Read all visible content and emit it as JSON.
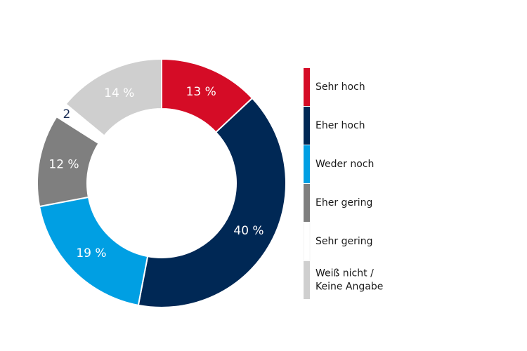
{
  "chart_data": {
    "type": "pie",
    "donut": true,
    "legend_position": "right",
    "slices": [
      {
        "label": "Sehr hoch",
        "value": 13,
        "display": "13 %",
        "color": "#d50c26",
        "text_color": "light"
      },
      {
        "label": "Eher hoch",
        "value": 40,
        "display": "40 %",
        "color": "#002855",
        "text_color": "light"
      },
      {
        "label": "Weder noch",
        "value": 19,
        "display": "19 %",
        "color": "#009fe3",
        "text_color": "light"
      },
      {
        "label": "Eher gering",
        "value": 12,
        "display": "12 %",
        "color": "#7f7f7f",
        "text_color": "light"
      },
      {
        "label": "Sehr gering",
        "value": 2,
        "display": "2",
        "color": "#ffffff",
        "text_color": "dark"
      },
      {
        "label": "Weiß nicht / Keine Angabe",
        "label_lines": [
          "Weiß nicht /",
          "Keine Angabe"
        ],
        "value": 14,
        "display": "14 %",
        "color": "#cfcfcf",
        "text_color": "light"
      }
    ]
  }
}
